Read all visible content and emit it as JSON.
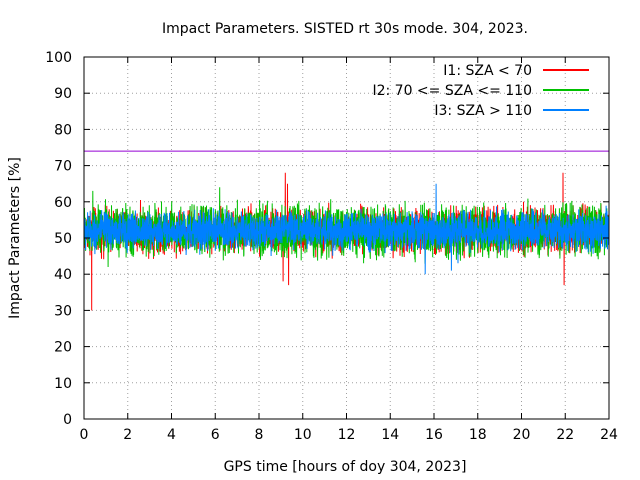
{
  "chart_data": {
    "type": "line",
    "title": "Impact Parameters. SISTED rt 30s mode. 304, 2023.",
    "xlabel": "GPS time [hours of doy 304, 2023]",
    "ylabel": "Impact Parameters [%]",
    "xlim": [
      0,
      24
    ],
    "ylim": [
      0,
      100
    ],
    "xticks": [
      0,
      2,
      4,
      6,
      8,
      10,
      12,
      14,
      16,
      18,
      20,
      22,
      24
    ],
    "yticks": [
      0,
      10,
      20,
      30,
      40,
      50,
      60,
      70,
      80,
      90,
      100
    ],
    "grid": true,
    "legend_position": "top-right",
    "reference_line": {
      "y": 74,
      "color": "#9400d3"
    },
    "series": [
      {
        "name": "I1: SZA < 70",
        "color": "#ff0000",
        "typical_range": [
          45,
          59
        ],
        "events": [
          {
            "x": 0.35,
            "y": 30
          },
          {
            "x": 9.1,
            "y": 38
          },
          {
            "x": 9.2,
            "y": 68
          },
          {
            "x": 9.35,
            "y": 37
          },
          {
            "x": 9.3,
            "y": 65
          },
          {
            "x": 21.9,
            "y": 68
          },
          {
            "x": 21.95,
            "y": 37
          }
        ]
      },
      {
        "name": "I2: 70 <= SZA <= 110",
        "color": "#00c000",
        "typical_range": [
          44,
          60
        ],
        "events": [
          {
            "x": 0.4,
            "y": 63
          },
          {
            "x": 6.2,
            "y": 64
          },
          {
            "x": 1.1,
            "y": 42
          }
        ]
      },
      {
        "name": "I3: SZA > 110",
        "color": "#0080ff",
        "typical_range": [
          46,
          58
        ],
        "events": [
          {
            "x": 16.1,
            "y": 65
          },
          {
            "x": 15.6,
            "y": 40
          },
          {
            "x": 16.8,
            "y": 41
          },
          {
            "x": 17.1,
            "y": 43
          }
        ]
      }
    ]
  }
}
